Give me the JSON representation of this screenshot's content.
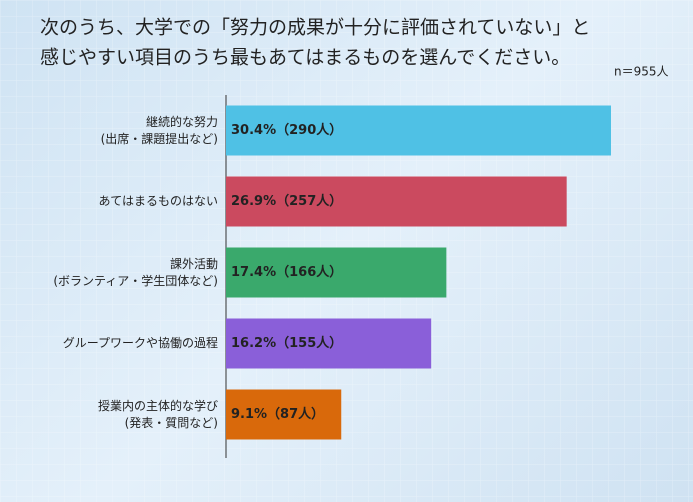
{
  "chart_data": {
    "type": "bar",
    "orientation": "horizontal",
    "title": [
      "次のうち、大学での「努力の成果が十分に評価されていない」と",
      "感じやすい項目のうち最もあてはまるものを選んでください。"
    ],
    "annotation": "n＝955人",
    "categories": [
      "継続的な努力\n(出席・課題提出など)",
      "あてはまるものはない",
      "課外活動\n(ボランティア・学生団体など)",
      "グループワークや協働の過程",
      "授業内の主体的な学び\n(発表・質問など)"
    ],
    "values": [
      30.4,
      26.9,
      17.4,
      16.2,
      9.1
    ],
    "value_labels": [
      "30.4%（290人）",
      "26.9%（257人）",
      "17.4%（166人）",
      "16.2%（155人）",
      "9.1%（87人）"
    ],
    "colors": [
      "#4fc1e5",
      "#cb4a5f",
      "#3aa96c",
      "#8a5fd9",
      "#d9690b"
    ]
  }
}
